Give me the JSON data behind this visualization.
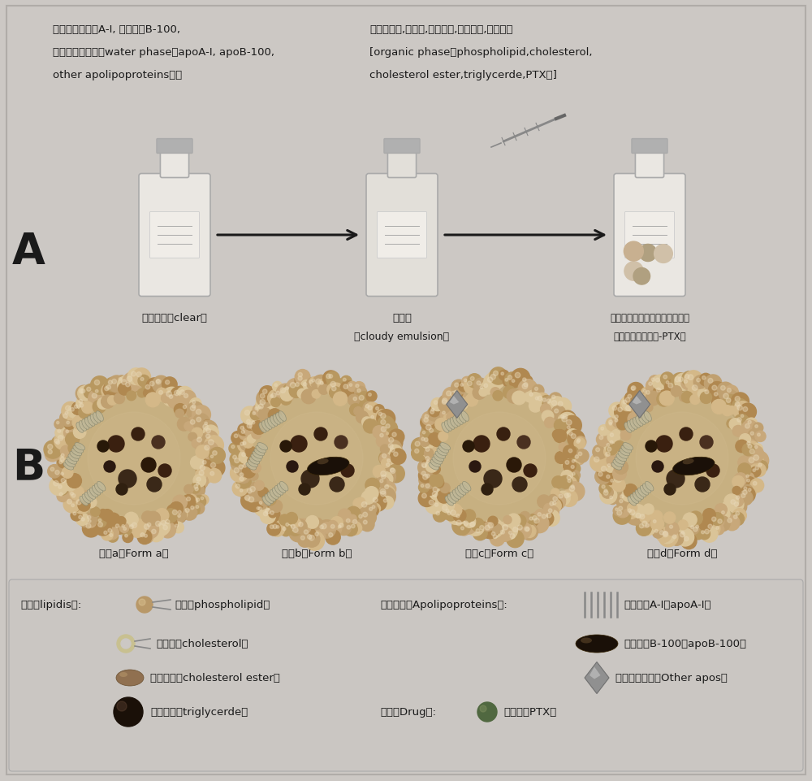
{
  "bg_color": "#ccc8c4",
  "dark": "#1a1a1a",
  "text_water_line1": "水相（载脂蛋白A-I, 载脂蛋白B-100,",
  "text_water_line2": "其他载脂蛋白）【water phase（apoA-I, apoB-100,",
  "text_water_line3": "other apolipoproteins）】",
  "text_oil_line1": "油相（磷脂,胆固醇,胆固醇酯,甘油三酯,紫杉醇）",
  "text_oil_line2": "[organic phase（phospholipid,cholesterol,",
  "text_oil_line3": "cholesterol ester,triglycerde,PTX）]",
  "label_A": "A",
  "label_B": "B",
  "label_clear": "澄清溶液（clear）",
  "label_cloudy1": "混悬液",
  "label_cloudy2": "（cloudy emulsion）",
  "label_nano1": "载紫杉醇天然重组脂蛋白纳米粒",
  "label_nano2": "（天然重组脂蛋白-PTX）",
  "label_form_a": "形式a（Form a）",
  "label_form_b": "形式b（Form b）",
  "label_form_c": "形式c（Form c）",
  "label_form_d": "形式d（Form d）",
  "leg_lipid": "脂质（lipidis）:",
  "leg_phospholipid": "磷脂（phospholipid）",
  "leg_apolipo": "载脂蛋白（Apolipoproteins）:",
  "leg_apoA1": "载脂蛋白A-I（apoA-I）",
  "leg_cholesterol": "胆固醇（cholesterol）",
  "leg_apoB100": "载脂蛋白B-100（apoB-100）",
  "leg_cholesterol_ester": "胆固醇酯（cholesterol ester）",
  "leg_other_apos": "其他载脂蛋白（Other apos）",
  "leg_triglyceride": "甘油三酯（triglycerde）",
  "leg_drug": "药物（Drug）:",
  "leg_PTX": "紫杉醇（PTX）",
  "bottle_color": "#e8e5e0",
  "bottle_edge": "#aaaaaa",
  "bottle_cap": "#b0b0b0",
  "bead_colors": [
    "#c8a87a",
    "#d4b888",
    "#b89860",
    "#c0a070",
    "#dac498",
    "#b08850"
  ],
  "dark_particle": "#2a1a0a",
  "apoB_color": "#1a1008",
  "diamond_color": "#909090",
  "phospholipid_bead": "#b89868",
  "cholesterol_color": "#c8c090",
  "cholesterol_ester_color": "#907050",
  "triglyceride_color": "#1a1008",
  "ptx_color": "#506840"
}
